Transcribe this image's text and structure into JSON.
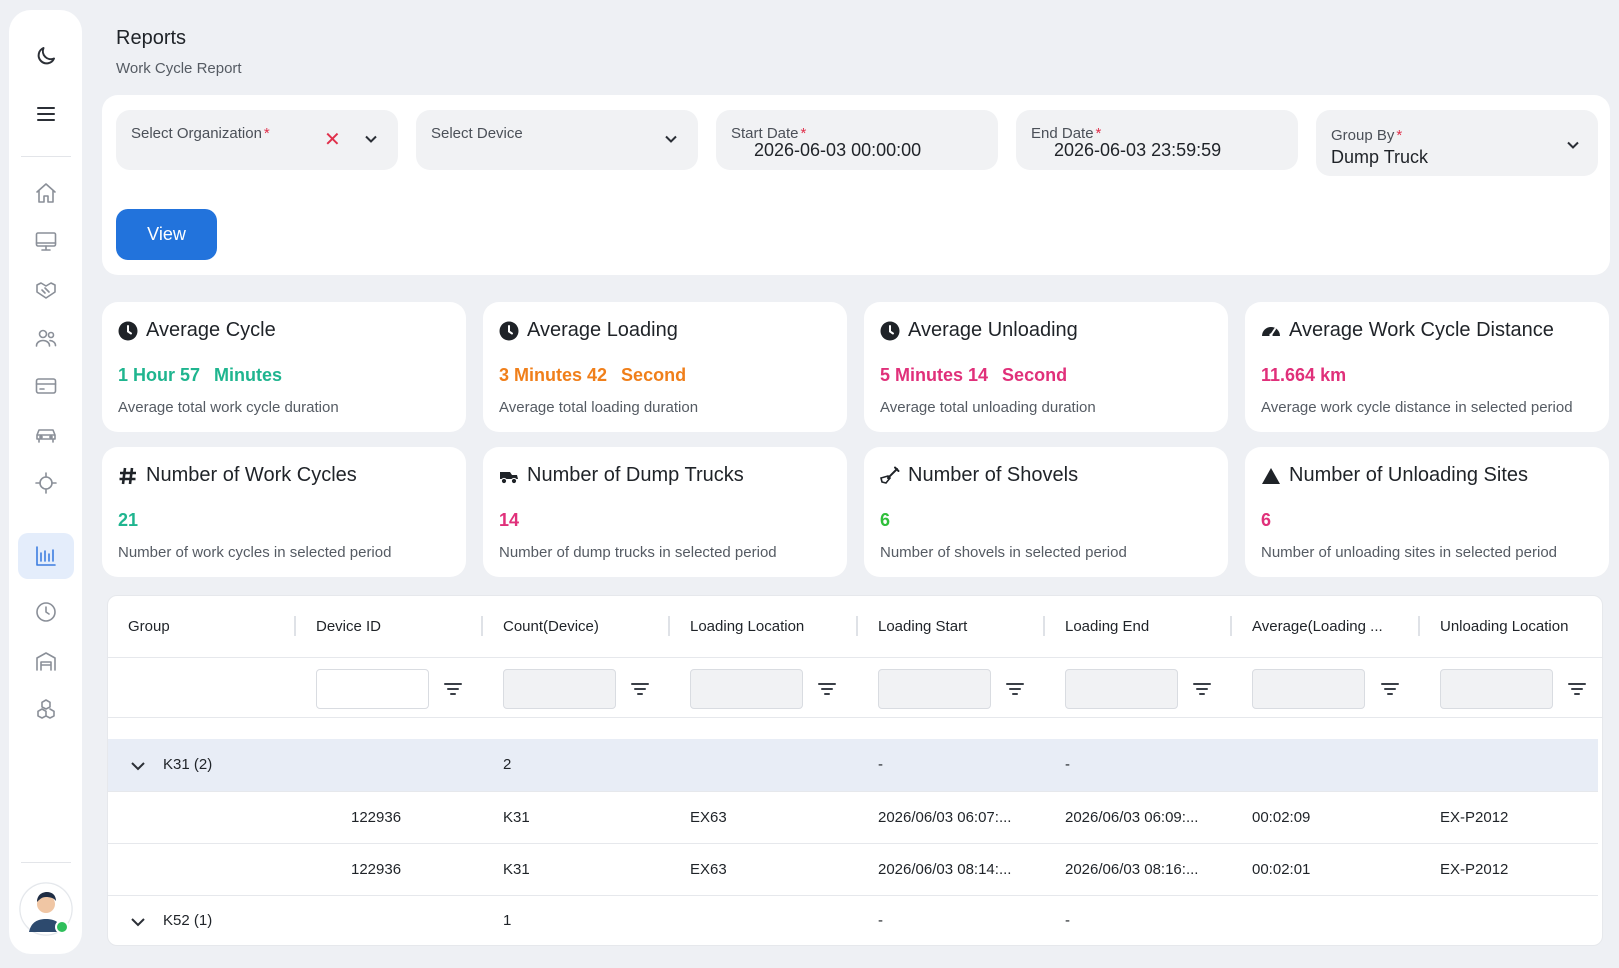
{
  "header": {
    "title": "Reports",
    "subtitle": "Work Cycle Report"
  },
  "filters": {
    "organization": {
      "label": "Select Organization",
      "required": "*"
    },
    "device": {
      "label": "Select Device"
    },
    "start_date": {
      "label": "Start Date",
      "required": "*",
      "value": "2026-06-03 00:00:00"
    },
    "end_date": {
      "label": "End Date",
      "required": "*",
      "value": "2026-06-03 23:59:59"
    },
    "group_by": {
      "label": "Group By",
      "required": "*",
      "value": "Dump Truck"
    },
    "clear_glyph": "✕",
    "view_label": "View"
  },
  "cards": [
    {
      "title": "Average Cycle",
      "icon": "clock-icon",
      "value_parts": [
        "1 Hour 57",
        "Minutes"
      ],
      "color": "#1fb58f",
      "description": "Average total work cycle duration"
    },
    {
      "title": "Average Loading",
      "icon": "clock-icon",
      "value_parts": [
        "3 Minutes 42",
        "Second"
      ],
      "color": "#f07f1a",
      "description": "Average total loading duration"
    },
    {
      "title": "Average Unloading",
      "icon": "clock-icon",
      "value_parts": [
        "5 Minutes 14",
        "Second"
      ],
      "color": "#e0307a",
      "description": "Average total unloading duration"
    },
    {
      "title": "Average Work Cycle Distance",
      "icon": "gauge-icon",
      "value_parts": [
        "11.664 km"
      ],
      "color": "#e0307a",
      "description": "Average work cycle distance in selected period"
    },
    {
      "title": "Number of Work Cycles",
      "icon": "hashtag-icon",
      "value_parts": [
        "21"
      ],
      "color": "#1fb58f",
      "description": "Number of work cycles in selected period"
    },
    {
      "title": "Number of Dump Trucks",
      "icon": "truck-icon",
      "value_parts": [
        "14"
      ],
      "color": "#e0307a",
      "description": "Number of dump trucks in selected period"
    },
    {
      "title": "Number of Shovels",
      "icon": "shovel-icon",
      "value_parts": [
        "6"
      ],
      "color": "#2fbf3b",
      "description": "Number of shovels in selected period"
    },
    {
      "title": "Number of Unloading Sites",
      "icon": "triangle-icon",
      "value_parts": [
        "6"
      ],
      "color": "#e0307a",
      "description": "Number of unloading sites in selected period"
    }
  ],
  "table": {
    "columns": [
      "Group",
      "Device ID",
      "Count(Device)",
      "Loading Location",
      "Loading Start",
      "Loading End",
      "Average(Loading ...",
      "Unloading Location"
    ],
    "rows": [
      {
        "type": "group",
        "label": "K31 (2)",
        "count": "2",
        "loading_start": "-",
        "loading_end": "-"
      },
      {
        "type": "data",
        "device_id": "122936",
        "count": "K31",
        "loading_location": "EX63",
        "loading_start": "2026/06/03 06:07:...",
        "loading_end": "2026/06/03 06:09:...",
        "average": "00:02:09",
        "unloading_location": "EX-P2012"
      },
      {
        "type": "data",
        "device_id": "122936",
        "count": "K31",
        "loading_location": "EX63",
        "loading_start": "2026/06/03 08:14:...",
        "loading_end": "2026/06/03 08:16:...",
        "average": "00:02:01",
        "unloading_location": "EX-P2012"
      },
      {
        "type": "group",
        "label": "K52 (1)",
        "count": "1",
        "loading_start": "-",
        "loading_end": "-"
      }
    ]
  },
  "sidebar": {
    "items": [
      "moon-icon",
      "menu-icon",
      "home-icon",
      "monitor-icon",
      "handshake-icon",
      "users-icon",
      "card-icon",
      "car-icon",
      "crosshair-icon",
      "bar-chart-icon",
      "clock-icon",
      "warehouse-icon",
      "boxes-icon"
    ],
    "active": "bar-chart-icon"
  }
}
